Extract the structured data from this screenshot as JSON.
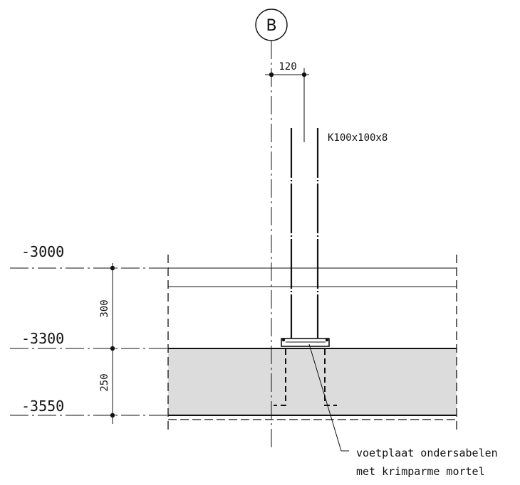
{
  "grid": {
    "label": "B"
  },
  "levels": [
    {
      "label": "-3000"
    },
    {
      "label": "-3300"
    },
    {
      "label": "-3550"
    }
  ],
  "dimensions": {
    "top_width": "120",
    "span_upper": "300",
    "span_lower": "250"
  },
  "profile": {
    "label": "K100x100x8"
  },
  "note": {
    "line1": "voetplaat ondersabelen",
    "line2": "met krimparme mortel"
  },
  "colors": {
    "line": "#111111",
    "slab_fill": "#dcdcdc"
  }
}
